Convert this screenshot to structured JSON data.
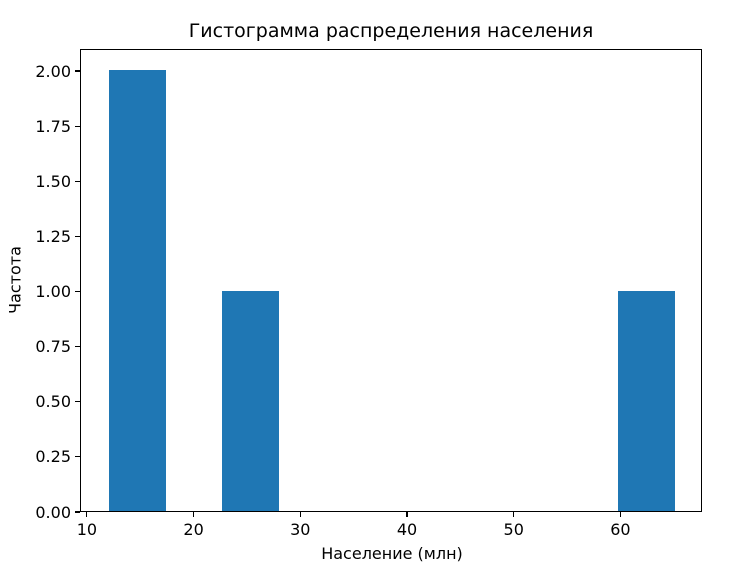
{
  "chart_data": {
    "type": "bar",
    "subtype": "histogram",
    "title": "Гистограмма распределения населения",
    "xlabel": "Население (млн)",
    "ylabel": "Частота",
    "bar_color": "#1f77b4",
    "background_color": "#ffffff",
    "spine_color": "#000000",
    "bin_edges": [
      12.0,
      17.3,
      22.6,
      27.9,
      33.2,
      38.5,
      43.8,
      49.1,
      54.4,
      59.7,
      65.0
    ],
    "counts": [
      2,
      0,
      1,
      0,
      0,
      0,
      0,
      0,
      0,
      1
    ],
    "xlim": [
      9.35,
      67.65
    ],
    "ylim": [
      0,
      2.1
    ],
    "xticks": [
      10,
      20,
      30,
      40,
      50,
      60
    ],
    "xtick_labels": [
      "10",
      "20",
      "30",
      "40",
      "50",
      "60"
    ],
    "yticks": [
      0.0,
      0.25,
      0.5,
      0.75,
      1.0,
      1.25,
      1.5,
      1.75,
      2.0
    ],
    "ytick_labels": [
      "0.00",
      "0.25",
      "0.50",
      "0.75",
      "1.00",
      "1.25",
      "1.50",
      "1.75",
      "2.00"
    ],
    "grid": false,
    "legend": null
  }
}
